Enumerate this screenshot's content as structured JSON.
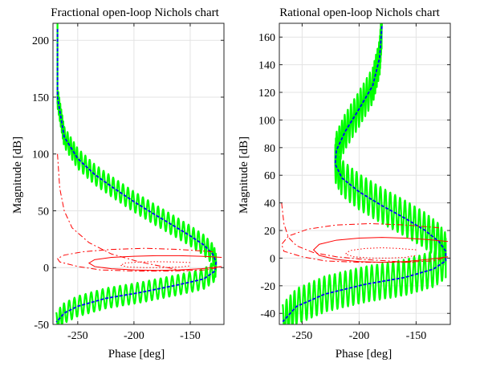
{
  "chart_data": [
    {
      "type": "line",
      "title": "Fractional open-loop Nichols chart",
      "xlabel": "Phase [deg]",
      "ylabel": "Magnitude [dB]",
      "xlim": [
        -272,
        -120
      ],
      "ylim": [
        -50,
        215
      ],
      "xticks": [
        -250,
        -200,
        -150
      ],
      "yticks": [
        -50,
        0,
        50,
        100,
        150,
        200
      ],
      "grid": true,
      "series": [
        {
          "role": "uncertainty-band",
          "color": "#00ff00",
          "x": [
            -268,
            -268,
            -262,
            -250,
            -235,
            -218,
            -200,
            -182,
            -165,
            -150,
            -138,
            -130,
            -127,
            -128,
            -138,
            -160,
            -195,
            -225,
            -250,
            -262,
            -269
          ],
          "y": [
            210,
            150,
            115,
            96,
            82,
            70,
            58,
            47,
            37,
            28,
            20,
            12,
            5,
            -3,
            -10,
            -15,
            -22,
            -27,
            -34,
            -40,
            -48
          ],
          "band_dB": 9
        },
        {
          "role": "nominal",
          "color": "#0000ff",
          "x": [
            -268,
            -268,
            -262,
            -250,
            -235,
            -218,
            -200,
            -182,
            -165,
            -150,
            -138,
            -130,
            -127,
            -128,
            -138,
            -160,
            -195,
            -225,
            -250,
            -262,
            -269
          ],
          "y": [
            210,
            150,
            115,
            96,
            82,
            70,
            58,
            47,
            37,
            28,
            20,
            12,
            5,
            -3,
            -10,
            -15,
            -22,
            -27,
            -34,
            -40,
            -48
          ]
        },
        {
          "role": "contour",
          "color": "#ff0000",
          "style": "dash-dot",
          "x": [
            -130,
            -160,
            -190,
            -220,
            -245,
            -262,
            -268,
            -266,
            -250,
            -230,
            -200,
            -165,
            -135,
            -122
          ],
          "y": [
            14,
            16,
            17,
            16,
            14,
            11,
            8,
            5,
            1,
            -2,
            -3,
            -3,
            -2,
            1
          ]
        },
        {
          "role": "contour",
          "color": "#ff0000",
          "style": "dash-dot",
          "x": [
            -268,
            -266,
            -262,
            -255,
            -240,
            -220,
            -195,
            -175,
            -160,
            -150
          ],
          "y": [
            100,
            70,
            50,
            35,
            22,
            12,
            5,
            1,
            -2,
            -3
          ]
        },
        {
          "role": "contour",
          "color": "#ff0000",
          "style": "solid",
          "x": [
            -122,
            -140,
            -160,
            -180,
            -200,
            -220,
            -235,
            -240,
            -235,
            -220,
            -200,
            -180,
            -160,
            -140,
            -122
          ],
          "y": [
            9,
            10,
            10.5,
            10.5,
            10,
            9,
            7,
            4,
            1,
            -1,
            -2,
            -2.5,
            -2,
            -1,
            1
          ]
        },
        {
          "role": "contour",
          "color": "#ff0000",
          "style": "dotted",
          "x": [
            -150,
            -165,
            -180,
            -195,
            -208,
            -212,
            -205,
            -190,
            -175,
            -160,
            -150
          ],
          "y": [
            4.5,
            5,
            5.2,
            5,
            4,
            2,
            0.5,
            0,
            0,
            0.5,
            1.5
          ]
        }
      ]
    },
    {
      "type": "line",
      "title": "Rational open-loop Nichols chart",
      "xlabel": "Phase [deg]",
      "ylabel": "Magnitude [dB]",
      "xlim": [
        -270,
        -120
      ],
      "ylim": [
        -48,
        170
      ],
      "xticks": [
        -250,
        -200,
        -150
      ],
      "yticks": [
        -40,
        -20,
        0,
        20,
        40,
        60,
        80,
        100,
        120,
        140,
        160
      ],
      "grid": true,
      "series": [
        {
          "role": "uncertainty-band",
          "color": "#00ff00",
          "x": [
            -180,
            -182,
            -188,
            -200,
            -212,
            -220,
            -221,
            -215,
            -200,
            -180,
            -160,
            -142,
            -130,
            -124,
            -124,
            -135,
            -160,
            -195,
            -230,
            -255,
            -267
          ],
          "y": [
            168,
            145,
            125,
            108,
            92,
            78,
            68,
            58,
            48,
            38,
            29,
            20,
            12,
            5,
            -2,
            -8,
            -14,
            -19,
            -26,
            -35,
            -46
          ],
          "band_dB": 13
        },
        {
          "role": "nominal",
          "color": "#0000ff",
          "x": [
            -180,
            -182,
            -188,
            -200,
            -212,
            -220,
            -221,
            -215,
            -200,
            -180,
            -160,
            -142,
            -130,
            -124,
            -124,
            -135,
            -160,
            -195,
            -230,
            -255,
            -267
          ],
          "y": [
            168,
            145,
            125,
            108,
            92,
            78,
            68,
            58,
            48,
            38,
            29,
            20,
            12,
            5,
            -2,
            -8,
            -14,
            -19,
            -26,
            -35,
            -46
          ]
        },
        {
          "role": "contour",
          "color": "#ff0000",
          "style": "dash-dot",
          "x": [
            -130,
            -160,
            -190,
            -220,
            -245,
            -262,
            -268,
            -266,
            -250,
            -230,
            -200,
            -165,
            -135,
            -122
          ],
          "y": [
            22,
            24,
            25,
            24,
            21,
            16,
            10,
            5,
            1,
            -2,
            -3,
            -3,
            -2,
            1
          ]
        },
        {
          "role": "contour",
          "color": "#ff0000",
          "style": "dash-dot",
          "x": [
            -268,
            -266,
            -262,
            -255,
            -240,
            -220,
            -195,
            -175,
            -160,
            -150
          ],
          "y": [
            40,
            25,
            15,
            9,
            4,
            1,
            -1,
            -2,
            -3,
            -3
          ]
        },
        {
          "role": "contour",
          "color": "#ff0000",
          "style": "solid",
          "x": [
            -122,
            -140,
            -160,
            -180,
            -200,
            -220,
            -235,
            -240,
            -235,
            -220,
            -200,
            -180,
            -160,
            -140,
            -122
          ],
          "y": [
            12,
            13.5,
            14.5,
            15,
            14.5,
            13,
            10,
            6,
            2,
            -1,
            -2.5,
            -3,
            -2.5,
            -1,
            1
          ]
        },
        {
          "role": "contour",
          "color": "#ff0000",
          "style": "dotted",
          "x": [
            -150,
            -165,
            -180,
            -195,
            -208,
            -212,
            -205,
            -190,
            -175,
            -160,
            -150
          ],
          "y": [
            6,
            7,
            7.5,
            7,
            5.5,
            3,
            1,
            0,
            0,
            0.5,
            2
          ]
        }
      ]
    }
  ]
}
